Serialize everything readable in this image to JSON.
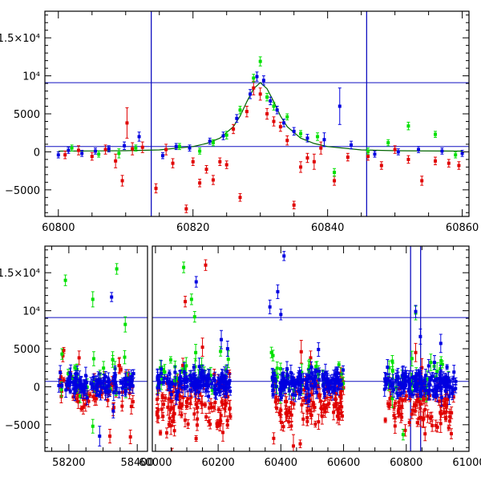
{
  "chart_data": [
    {
      "type": "scatter",
      "title": "",
      "xlabel": "",
      "ylabel": "",
      "xlim": [
        60798,
        60861
      ],
      "ylim": [
        -8500,
        18500
      ],
      "xticks": [
        60800,
        60820,
        60840,
        60860
      ],
      "xtick_labels": [
        "60800",
        "60820",
        "60840",
        "60860"
      ],
      "yticks": [
        -5000,
        0,
        5000,
        10000,
        15000
      ],
      "ytick_labels": [
        "−5000",
        "0",
        "5000",
        "10⁴",
        "1.5×10⁴"
      ],
      "hlines": [
        9100,
        700
      ],
      "vlines": [
        60813.8,
        60845.8
      ],
      "model_curve": {
        "name": "model",
        "color": "#006400",
        "x": [
          60800,
          60810,
          60815,
          60820,
          60822,
          60824,
          60826,
          60827,
          60828,
          60829,
          60830,
          60831,
          60832,
          60833,
          60834,
          60836,
          60838,
          60840,
          60845,
          60850,
          60860
        ],
        "y": [
          100,
          150,
          250,
          700,
          1100,
          1800,
          3300,
          4700,
          6600,
          8300,
          9100,
          8300,
          6600,
          4700,
          3300,
          1800,
          1100,
          700,
          250,
          150,
          100
        ]
      },
      "series": [
        {
          "name": "red",
          "color": "#e00000",
          "points": [
            {
              "x": 60801,
              "y": -400,
              "err": 500
            },
            {
              "x": 60803,
              "y": 200,
              "err": 600
            },
            {
              "x": 60805,
              "y": -600,
              "err": 500
            },
            {
              "x": 60807,
              "y": 300,
              "err": 600
            },
            {
              "x": 60808.5,
              "y": -1200,
              "err": 900
            },
            {
              "x": 60809.5,
              "y": -3800,
              "err": 700
            },
            {
              "x": 60810.2,
              "y": 3800,
              "err": 2000
            },
            {
              "x": 60811,
              "y": 400,
              "err": 800
            },
            {
              "x": 60812.5,
              "y": 600,
              "err": 700
            },
            {
              "x": 60814.5,
              "y": -4800,
              "err": 600
            },
            {
              "x": 60816,
              "y": 300,
              "err": 700
            },
            {
              "x": 60817,
              "y": -1500,
              "err": 600
            },
            {
              "x": 60819,
              "y": -7500,
              "err": 500
            },
            {
              "x": 60820,
              "y": -1300,
              "err": 500
            },
            {
              "x": 60821,
              "y": -4100,
              "err": 500
            },
            {
              "x": 60822,
              "y": -2300,
              "err": 500
            },
            {
              "x": 60823,
              "y": -3700,
              "err": 600
            },
            {
              "x": 60824,
              "y": -1300,
              "err": 500
            },
            {
              "x": 60825,
              "y": -1700,
              "err": 500
            },
            {
              "x": 60826,
              "y": 3000,
              "err": 600
            },
            {
              "x": 60827,
              "y": -6000,
              "err": 500
            },
            {
              "x": 60828,
              "y": 5300,
              "err": 700
            },
            {
              "x": 60829,
              "y": 8400,
              "err": 900
            },
            {
              "x": 60830,
              "y": 7600,
              "err": 800
            },
            {
              "x": 60831,
              "y": 5000,
              "err": 700
            },
            {
              "x": 60832,
              "y": 4000,
              "err": 600
            },
            {
              "x": 60833,
              "y": 3300,
              "err": 600
            },
            {
              "x": 60834,
              "y": 1500,
              "err": 600
            },
            {
              "x": 60835,
              "y": -7000,
              "err": 500
            },
            {
              "x": 60836,
              "y": -2000,
              "err": 700
            },
            {
              "x": 60837,
              "y": -800,
              "err": 600
            },
            {
              "x": 60838,
              "y": -1300,
              "err": 1000
            },
            {
              "x": 60839,
              "y": 500,
              "err": 800
            },
            {
              "x": 60841,
              "y": -3800,
              "err": 600
            },
            {
              "x": 60843,
              "y": -700,
              "err": 500
            },
            {
              "x": 60846,
              "y": -600,
              "err": 500
            },
            {
              "x": 60848,
              "y": -1800,
              "err": 500
            },
            {
              "x": 60850,
              "y": 300,
              "err": 500
            },
            {
              "x": 60852,
              "y": -1000,
              "err": 500
            },
            {
              "x": 60854,
              "y": -3800,
              "err": 600
            },
            {
              "x": 60856,
              "y": -1200,
              "err": 500
            },
            {
              "x": 60858,
              "y": -1500,
              "err": 500
            },
            {
              "x": 60859.5,
              "y": -1800,
              "err": 500
            }
          ]
        },
        {
          "name": "green",
          "color": "#00e000",
          "points": [
            {
              "x": 60802,
              "y": 500,
              "err": 400
            },
            {
              "x": 60806,
              "y": -300,
              "err": 400
            },
            {
              "x": 60809,
              "y": -200,
              "err": 600
            },
            {
              "x": 60811.5,
              "y": 500,
              "err": 400
            },
            {
              "x": 60818,
              "y": 700,
              "err": 400
            },
            {
              "x": 60821,
              "y": 100,
              "err": 400
            },
            {
              "x": 60823,
              "y": 1200,
              "err": 400
            },
            {
              "x": 60825,
              "y": 2200,
              "err": 500
            },
            {
              "x": 60827,
              "y": 5500,
              "err": 500
            },
            {
              "x": 60829,
              "y": 9700,
              "err": 500
            },
            {
              "x": 60830,
              "y": 11900,
              "err": 600
            },
            {
              "x": 60831,
              "y": 7200,
              "err": 500
            },
            {
              "x": 60832,
              "y": 6000,
              "err": 500
            },
            {
              "x": 60834,
              "y": 4600,
              "err": 400
            },
            {
              "x": 60836,
              "y": 2400,
              "err": 400
            },
            {
              "x": 60838.5,
              "y": 2000,
              "err": 500
            },
            {
              "x": 60841,
              "y": -2700,
              "err": 500
            },
            {
              "x": 60846,
              "y": 100,
              "err": 400
            },
            {
              "x": 60849,
              "y": 1200,
              "err": 400
            },
            {
              "x": 60852,
              "y": 3400,
              "err": 500
            },
            {
              "x": 60856,
              "y": 2300,
              "err": 400
            },
            {
              "x": 60859,
              "y": -400,
              "err": 400
            }
          ]
        },
        {
          "name": "blue",
          "color": "#0000e0",
          "points": [
            {
              "x": 60800,
              "y": -400,
              "err": 400
            },
            {
              "x": 60801.5,
              "y": 200,
              "err": 400
            },
            {
              "x": 60803.5,
              "y": -200,
              "err": 400
            },
            {
              "x": 60805.5,
              "y": 100,
              "err": 400
            },
            {
              "x": 60807.5,
              "y": 400,
              "err": 400
            },
            {
              "x": 60809.8,
              "y": 800,
              "err": 500
            },
            {
              "x": 60812,
              "y": 2000,
              "err": 600
            },
            {
              "x": 60815.5,
              "y": -500,
              "err": 400
            },
            {
              "x": 60817.5,
              "y": 700,
              "err": 400
            },
            {
              "x": 60819.5,
              "y": 500,
              "err": 400
            },
            {
              "x": 60822.5,
              "y": 1400,
              "err": 400
            },
            {
              "x": 60824.5,
              "y": 2100,
              "err": 500
            },
            {
              "x": 60826.5,
              "y": 4400,
              "err": 500
            },
            {
              "x": 60828.5,
              "y": 7600,
              "err": 600
            },
            {
              "x": 60829.5,
              "y": 9900,
              "err": 600
            },
            {
              "x": 60830.5,
              "y": 9400,
              "err": 600
            },
            {
              "x": 60831.5,
              "y": 6700,
              "err": 500
            },
            {
              "x": 60832.5,
              "y": 5500,
              "err": 500
            },
            {
              "x": 60833.5,
              "y": 3800,
              "err": 500
            },
            {
              "x": 60835,
              "y": 2700,
              "err": 500
            },
            {
              "x": 60837,
              "y": 1800,
              "err": 500
            },
            {
              "x": 60839.5,
              "y": 1600,
              "err": 900
            },
            {
              "x": 60841.8,
              "y": 6000,
              "err": 2400
            },
            {
              "x": 60843.5,
              "y": 900,
              "err": 500
            },
            {
              "x": 60847,
              "y": -300,
              "err": 400
            },
            {
              "x": 60850.5,
              "y": 0,
              "err": 400
            },
            {
              "x": 60853.5,
              "y": 300,
              "err": 400
            },
            {
              "x": 60857,
              "y": 100,
              "err": 400
            },
            {
              "x": 60860,
              "y": -200,
              "err": 400
            }
          ]
        }
      ]
    },
    {
      "type": "scatter",
      "title": "",
      "xlabel": "",
      "ylabel": "",
      "broken_x_axis": true,
      "xlim_segments": [
        [
          58130,
          58430
        ],
        [
          59990,
          61000
        ]
      ],
      "xticks": [
        58200,
        58400,
        60000,
        60200,
        60400,
        60600,
        60800,
        61000
      ],
      "xtick_labels": [
        "58200",
        "58400",
        "60000",
        "60200",
        "60400",
        "60600",
        "60800",
        "61000"
      ],
      "ylim": [
        -8500,
        18500
      ],
      "yticks": [
        -5000,
        0,
        5000,
        10000,
        15000
      ],
      "ytick_labels": [
        "−5000",
        "0",
        "5000",
        "10⁴",
        "1.5×10⁴"
      ],
      "hlines": [
        9100,
        700
      ],
      "vlines": [
        60813.8,
        60845.8
      ],
      "series": [
        {
          "name": "red",
          "color": "#e00000",
          "clusters": [
            {
              "x0": 58170,
              "x1": 58390,
              "count": 70,
              "mean": -300,
              "spread": 2600,
              "seed": 11
            },
            {
              "x0": 60005,
              "x1": 60240,
              "count": 110,
              "mean": -2500,
              "spread": 3400,
              "seed": 12
            },
            {
              "x0": 60370,
              "x1": 60600,
              "count": 100,
              "mean": -2700,
              "spread": 3500,
              "seed": 13
            },
            {
              "x0": 60730,
              "x1": 60960,
              "count": 85,
              "mean": -2500,
              "spread": 3000,
              "seed": 14
            }
          ],
          "points": [
            {
              "x": 58230,
              "y": 3800,
              "err": 900
            },
            {
              "x": 58320,
              "y": -6500,
              "err": 900
            },
            {
              "x": 58380,
              "y": -6600,
              "err": 900
            },
            {
              "x": 60160,
              "y": 16000,
              "err": 700
            },
            {
              "x": 60095,
              "y": 11200,
              "err": 700
            },
            {
              "x": 60150,
              "y": 5200,
              "err": 1200
            },
            {
              "x": 60440,
              "y": -7800,
              "err": 1500
            },
            {
              "x": 60465,
              "y": 4600,
              "err": 1500
            },
            {
              "x": 60495,
              "y": 3800,
              "err": 900
            },
            {
              "x": 60830,
              "y": 4500,
              "err": 1200
            },
            {
              "x": 60850,
              "y": 2500,
              "err": 1200
            },
            {
              "x": 60860,
              "y": -6200,
              "err": 900
            }
          ]
        },
        {
          "name": "green",
          "color": "#00e000",
          "clusters": [
            {
              "x0": 58170,
              "x1": 58390,
              "count": 25,
              "mean": 1500,
              "spread": 2400,
              "seed": 21
            },
            {
              "x0": 60005,
              "x1": 60240,
              "count": 30,
              "mean": 1200,
              "spread": 2200,
              "seed": 22
            },
            {
              "x0": 60370,
              "x1": 60600,
              "count": 30,
              "mean": 1300,
              "spread": 2200,
              "seed": 23
            },
            {
              "x0": 60730,
              "x1": 60960,
              "count": 28,
              "mean": 1400,
              "spread": 2200,
              "seed": 24
            }
          ],
          "points": [
            {
              "x": 58190,
              "y": 14000,
              "err": 700
            },
            {
              "x": 58270,
              "y": 11500,
              "err": 1000
            },
            {
              "x": 58340,
              "y": 15500,
              "err": 700
            },
            {
              "x": 58365,
              "y": 8200,
              "err": 1000
            },
            {
              "x": 58180,
              "y": 4300,
              "err": 700
            },
            {
              "x": 58270,
              "y": -5200,
              "err": 900
            },
            {
              "x": 60090,
              "y": 15700,
              "err": 700
            },
            {
              "x": 60115,
              "y": 11500,
              "err": 700
            },
            {
              "x": 60125,
              "y": 9200,
              "err": 700
            },
            {
              "x": 60370,
              "y": 4500,
              "err": 700
            },
            {
              "x": 60375,
              "y": 4100,
              "err": 700
            },
            {
              "x": 60830,
              "y": 9700,
              "err": 900
            },
            {
              "x": 60745,
              "y": 2500,
              "err": 900
            },
            {
              "x": 60790,
              "y": -6300,
              "err": 700
            }
          ]
        },
        {
          "name": "blue",
          "color": "#0000e0",
          "clusters": [
            {
              "x0": 58170,
              "x1": 58390,
              "count": 110,
              "mean": 300,
              "spread": 1200,
              "seed": 31
            },
            {
              "x0": 60005,
              "x1": 60240,
              "count": 140,
              "mean": 500,
              "spread": 1500,
              "seed": 32
            },
            {
              "x0": 60370,
              "x1": 60600,
              "count": 140,
              "mean": 600,
              "spread": 1500,
              "seed": 33
            },
            {
              "x0": 60730,
              "x1": 60960,
              "count": 140,
              "mean": 500,
              "spread": 1500,
              "seed": 34
            }
          ],
          "points": [
            {
              "x": 58325,
              "y": 11800,
              "err": 600
            },
            {
              "x": 58290,
              "y": -6500,
              "err": 1300
            },
            {
              "x": 58330,
              "y": -3200,
              "err": 900
            },
            {
              "x": 60130,
              "y": 13800,
              "err": 700
            },
            {
              "x": 60210,
              "y": 6200,
              "err": 1200
            },
            {
              "x": 60230,
              "y": 5000,
              "err": 1000
            },
            {
              "x": 60410,
              "y": 17200,
              "err": 600
            },
            {
              "x": 60390,
              "y": 12500,
              "err": 900
            },
            {
              "x": 60365,
              "y": 10500,
              "err": 900
            },
            {
              "x": 60400,
              "y": 9500,
              "err": 700
            },
            {
              "x": 60520,
              "y": 4900,
              "err": 900
            },
            {
              "x": 60830,
              "y": 9900,
              "err": 800
            },
            {
              "x": 60845,
              "y": 6600,
              "err": 1000
            },
            {
              "x": 60910,
              "y": 5700,
              "err": 1200
            },
            {
              "x": 60890,
              "y": 3200,
              "err": 900
            }
          ]
        }
      ]
    }
  ]
}
